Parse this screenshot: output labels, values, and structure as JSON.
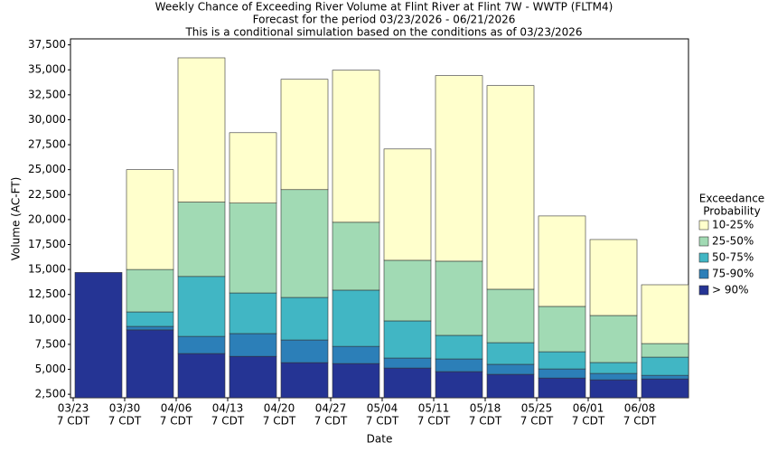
{
  "chart_data": {
    "type": "bar",
    "title": "Weekly Chance of Exceeding River Volume at Flint River at Flint 7W - WWTP (FLTM4)",
    "subtitle": [
      "Forecast for the period 03/23/2026 - 06/21/2026",
      "This is a conditional simulation based on the conditions as of 03/23/2026"
    ],
    "x_label": "Date",
    "y_label": "Volume (AC-FT)",
    "categories": [
      "03/23",
      "03/30",
      "04/06",
      "04/13",
      "04/20",
      "04/27",
      "05/04",
      "05/11",
      "05/18",
      "05/25",
      "06/01",
      "06/08"
    ],
    "x_tick_sublabel": "7 CDT",
    "legend_title": [
      "Exceedance",
      "Probability"
    ],
    "series": [
      {
        "name": "> 90%",
        "color": "#253494",
        "values": [
          14700,
          8950,
          6580,
          6300,
          5670,
          5580,
          5130,
          4770,
          4500,
          4130,
          3950,
          4040
        ]
      },
      {
        "name": "75-90%",
        "color": "#2c7fb8",
        "values": [
          14700,
          9300,
          8300,
          8580,
          7940,
          7300,
          6130,
          6040,
          5500,
          5040,
          4590,
          4400
        ]
      },
      {
        "name": "50-75%",
        "color": "#41b6c4",
        "values": [
          14700,
          10750,
          14300,
          12650,
          12200,
          12930,
          9850,
          8400,
          7670,
          6760,
          5680,
          6220
        ]
      },
      {
        "name": "25-50%",
        "color": "#a1dab4",
        "values": [
          14700,
          15000,
          21750,
          21650,
          23000,
          19730,
          15920,
          15830,
          13020,
          11300,
          10390,
          7580
        ]
      },
      {
        "name": "10-25%",
        "color": "#ffffcc",
        "values": [
          14700,
          25000,
          36200,
          28700,
          34050,
          34960,
          27070,
          34420,
          33420,
          20360,
          18000,
          13470
        ]
      }
    ],
    "ylim": [
      2150,
      38100
    ],
    "yticks": [
      {
        "value": 2500,
        "label": "2,500"
      },
      {
        "value": 5000,
        "label": "5,000"
      },
      {
        "value": 7500,
        "label": "7,500"
      },
      {
        "value": 10000,
        "label": "10,000"
      },
      {
        "value": 12500,
        "label": "12,500"
      },
      {
        "value": 15000,
        "label": "15,000"
      },
      {
        "value": 17500,
        "label": "17,500"
      },
      {
        "value": 20000,
        "label": "20,000"
      },
      {
        "value": 22500,
        "label": "22,500"
      },
      {
        "value": 25000,
        "label": "25,000"
      },
      {
        "value": 27500,
        "label": "27,500"
      },
      {
        "value": 30000,
        "label": "30,000"
      },
      {
        "value": 32500,
        "label": "32,500"
      },
      {
        "value": 35000,
        "label": "35,000"
      },
      {
        "value": 37500,
        "label": "37,500"
      }
    ],
    "grid": false,
    "legend_position": "right"
  }
}
